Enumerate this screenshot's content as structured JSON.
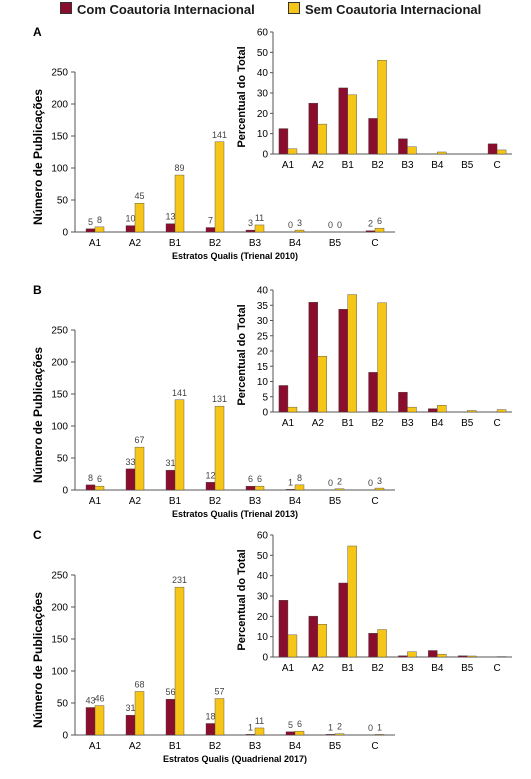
{
  "legend": [
    {
      "label": "Com Coautoria Internacional",
      "color": "#8b0d2e"
    },
    {
      "label": "Sem Coautoria Internacional",
      "color": "#f5c518"
    }
  ],
  "chart_data": [
    {
      "panel": "A",
      "type": "bar",
      "xlabel": "Estratos Qualis (Trienal 2010)",
      "ylabel": "Número de Publicações",
      "ylim": [
        0,
        250
      ],
      "yticks": [
        0,
        50,
        100,
        150,
        200,
        250
      ],
      "categories": [
        "A1",
        "A2",
        "B1",
        "B2",
        "B3",
        "B4",
        "B5",
        "C"
      ],
      "series": [
        {
          "name": "Com Coautoria Internacional",
          "values": [
            5,
            10,
            13,
            7,
            3,
            0,
            0,
            2
          ]
        },
        {
          "name": "Sem Coautoria Internacional",
          "values": [
            8,
            45,
            89,
            141,
            11,
            3,
            0,
            6
          ]
        }
      ],
      "inset": {
        "type": "bar",
        "ylabel": "Percentual do Total",
        "ylim": [
          0,
          60
        ],
        "yticks": [
          0,
          10,
          20,
          30,
          40,
          50,
          60
        ],
        "categories": [
          "A1",
          "A2",
          "B1",
          "B2",
          "B3",
          "B4",
          "B5",
          "C"
        ],
        "series": [
          {
            "name": "Com Coautoria Internacional",
            "values": [
              12.5,
              25,
              32.5,
              17.5,
              7.5,
              0,
              0,
              5
            ]
          },
          {
            "name": "Sem Coautoria Internacional",
            "values": [
              2.6,
              14.7,
              29.1,
              46.1,
              3.6,
              1,
              0,
              2
            ]
          }
        ]
      }
    },
    {
      "panel": "B",
      "type": "bar",
      "xlabel": "Estratos Qualis (Trienal 2013)",
      "ylabel": "Número de Publicações",
      "ylim": [
        0,
        250
      ],
      "yticks": [
        0,
        50,
        100,
        150,
        200,
        250
      ],
      "categories": [
        "A1",
        "A2",
        "B1",
        "B2",
        "B3",
        "B4",
        "B5",
        "C"
      ],
      "series": [
        {
          "name": "Com Coautoria Internacional",
          "values": [
            8,
            33,
            31,
            12,
            6,
            1,
            0,
            0
          ]
        },
        {
          "name": "Sem Coautoria Internacional",
          "values": [
            6,
            67,
            141,
            131,
            6,
            8,
            2,
            3
          ]
        }
      ],
      "inset": {
        "type": "bar",
        "ylabel": "Percentual do Total",
        "ylim": [
          0,
          40
        ],
        "yticks": [
          0,
          5,
          10,
          15,
          20,
          25,
          30,
          35,
          40
        ],
        "categories": [
          "A1",
          "A2",
          "B1",
          "B2",
          "B3",
          "B4",
          "B5",
          "C"
        ],
        "series": [
          {
            "name": "Com Coautoria Internacional",
            "values": [
              8.7,
              36,
              33.7,
              13,
              6.5,
              1.1,
              0,
              0
            ]
          },
          {
            "name": "Sem Coautoria Internacional",
            "values": [
              1.6,
              18.3,
              38.5,
              35.8,
              1.6,
              2.2,
              0.5,
              0.8
            ]
          }
        ]
      }
    },
    {
      "panel": "C",
      "type": "bar",
      "xlabel": "Estratos Qualis (Quadrienal 2017)",
      "ylabel": "Número de Publicações",
      "ylim": [
        0,
        250
      ],
      "yticks": [
        0,
        50,
        100,
        150,
        200,
        250
      ],
      "categories": [
        "A1",
        "A2",
        "B1",
        "B2",
        "B3",
        "B4",
        "B5",
        "C"
      ],
      "series": [
        {
          "name": "Com Coautoria Internacional",
          "values": [
            43,
            31,
            56,
            18,
            1,
            5,
            1,
            0
          ]
        },
        {
          "name": "Sem Coautoria Internacional",
          "values": [
            46,
            68,
            231,
            57,
            11,
            6,
            2,
            1
          ]
        }
      ],
      "inset": {
        "type": "bar",
        "ylabel": "Percentual do Total",
        "ylim": [
          0,
          60
        ],
        "yticks": [
          0,
          10,
          20,
          30,
          40,
          50,
          60
        ],
        "categories": [
          "A1",
          "A2",
          "B1",
          "B2",
          "B3",
          "B4",
          "B5",
          "C"
        ],
        "series": [
          {
            "name": "Com Coautoria Internacional",
            "values": [
              27.9,
              20.1,
              36.4,
              11.7,
              0.6,
              3.2,
              0.6,
              0
            ]
          },
          {
            "name": "Sem Coautoria Internacional",
            "values": [
              10.9,
              16.1,
              54.6,
              13.5,
              2.6,
              1.4,
              0.5,
              0.2
            ]
          }
        ]
      }
    }
  ]
}
